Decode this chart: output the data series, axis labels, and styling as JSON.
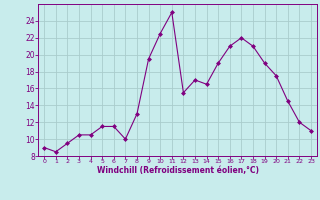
{
  "x": [
    0,
    1,
    2,
    3,
    4,
    5,
    6,
    7,
    8,
    9,
    10,
    11,
    12,
    13,
    14,
    15,
    16,
    17,
    18,
    19,
    20,
    21,
    22,
    23
  ],
  "y": [
    9,
    8.5,
    9.5,
    10.5,
    10.5,
    11.5,
    11.5,
    10,
    13,
    19.5,
    22.5,
    25,
    15.5,
    17,
    16.5,
    19,
    21,
    22,
    21,
    19,
    17.5,
    14.5,
    12,
    11
  ],
  "line_color": "#800080",
  "marker": "D",
  "marker_size": 2,
  "bg_color": "#c8ecec",
  "grid_color": "#b0d0d0",
  "xlabel": "Windchill (Refroidissement éolien,°C)",
  "xlabel_color": "#800080",
  "tick_color": "#800080",
  "ylim": [
    8,
    26
  ],
  "yticks": [
    8,
    10,
    12,
    14,
    16,
    18,
    20,
    22,
    24
  ],
  "xlim": [
    -0.5,
    23.5
  ],
  "title": ""
}
